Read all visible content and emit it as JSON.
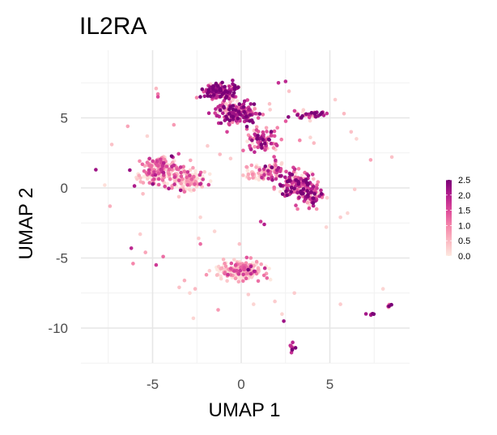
{
  "chart_data": {
    "type": "scatter",
    "title": "IL2RA",
    "xlabel": "UMAP 1",
    "ylabel": "UMAP 2",
    "xlim": [
      -9,
      9.3
    ],
    "ylim": [
      -12.6,
      8.4
    ],
    "x_ticks": [
      -5,
      0,
      5
    ],
    "y_ticks": [
      -10,
      -5,
      0,
      5
    ],
    "grid": true,
    "color_scale": {
      "min": 0,
      "max": 2.5,
      "ticks": [
        0.0,
        0.5,
        1.0,
        1.5,
        2.0,
        2.5
      ],
      "tick_labels": [
        "0.0",
        "0.5",
        "1.0",
        "1.5",
        "2.0",
        "2.5"
      ],
      "colors": [
        "#fde8df",
        "#fbb9c2",
        "#f586ab",
        "#dd4a9a",
        "#b41f8e",
        "#7a0177"
      ]
    },
    "legend_position": "right",
    "clusters": [
      {
        "center": [
          -1.2,
          6.9
        ],
        "spread": [
          1.0,
          0.55
        ],
        "n": 140,
        "mean_value": 1.9
      },
      {
        "center": [
          -0.2,
          5.4
        ],
        "spread": [
          1.1,
          0.8
        ],
        "n": 170,
        "mean_value": 1.8
      },
      {
        "center": [
          1.2,
          3.4
        ],
        "spread": [
          0.8,
          0.8
        ],
        "n": 90,
        "mean_value": 1.7
      },
      {
        "center": [
          3.7,
          5.3
        ],
        "spread": [
          1.0,
          0.3
        ],
        "n": 40,
        "mean_value": 2.0
      },
      {
        "center": [
          3.0,
          0.3
        ],
        "spread": [
          0.9,
          0.8
        ],
        "n": 130,
        "mean_value": 1.6
      },
      {
        "center": [
          3.9,
          -0.5
        ],
        "spread": [
          0.6,
          0.8
        ],
        "n": 90,
        "mean_value": 1.7
      },
      {
        "center": [
          2.0,
          1.2
        ],
        "spread": [
          0.9,
          0.6
        ],
        "n": 60,
        "mean_value": 1.1
      },
      {
        "center": [
          -4.6,
          1.2
        ],
        "spread": [
          1.0,
          1.0
        ],
        "n": 200,
        "mean_value": 0.8
      },
      {
        "center": [
          -3.0,
          0.5
        ],
        "spread": [
          0.9,
          0.9
        ],
        "n": 110,
        "mean_value": 0.5
      },
      {
        "center": [
          0.0,
          -5.9
        ],
        "spread": [
          1.1,
          0.6
        ],
        "n": 220,
        "mean_value": 0.55
      },
      {
        "center": [
          0.8,
          1.0
        ],
        "spread": [
          0.7,
          0.6
        ],
        "n": 40,
        "mean_value": 0.3
      },
      {
        "center": [
          2.9,
          -11.4
        ],
        "spread": [
          0.2,
          0.3
        ],
        "n": 14,
        "mean_value": 2.3
      },
      {
        "center": [
          8.4,
          -8.4
        ],
        "spread": [
          0.15,
          0.12
        ],
        "n": 8,
        "mean_value": 2.1
      },
      {
        "center": [
          7.4,
          -9.0
        ],
        "spread": [
          0.3,
          0.1
        ],
        "n": 6,
        "mean_value": 2.0
      }
    ],
    "scattered_points": [
      [
        -8.2,
        1.3,
        2.2
      ],
      [
        -7.7,
        0.2,
        0.1
      ],
      [
        -7.4,
        -1.3,
        0.6
      ],
      [
        -7.3,
        3.1,
        0.4
      ],
      [
        -6.4,
        4.4,
        0.7
      ],
      [
        -6.2,
        -4.3,
        1.9
      ],
      [
        -6.1,
        -5.4,
        1.0
      ],
      [
        -5.7,
        -3.3,
        0.3
      ],
      [
        -5.4,
        -4.6,
        0.7
      ],
      [
        -5.3,
        3.7,
        0.2
      ],
      [
        -4.7,
        6.7,
        1.1
      ],
      [
        -4.4,
        -4.9,
        1.2
      ],
      [
        -4.8,
        -5.5,
        1.7
      ],
      [
        -4.7,
        6.5,
        1.5
      ],
      [
        -4.8,
        7.1,
        0.5
      ],
      [
        -3.8,
        4.5,
        0.8
      ],
      [
        -3.2,
        -6.6,
        0.6
      ],
      [
        -3.5,
        -7.1,
        0.4
      ],
      [
        -2.9,
        -7.5,
        0.2
      ],
      [
        -2.7,
        -9.3,
        0.2
      ],
      [
        -2.4,
        -3.6,
        0.3
      ],
      [
        -2.3,
        -2.1,
        0.2
      ],
      [
        -2.3,
        -4.0,
        1.2
      ],
      [
        -2.6,
        -7.2,
        0.5
      ],
      [
        -1.9,
        3.0,
        0.3
      ],
      [
        -1.3,
        -8.7,
        0.8
      ],
      [
        -1.0,
        -5.1,
        0.5
      ],
      [
        -0.6,
        2.1,
        0.3
      ],
      [
        -0.1,
        -4.0,
        0.4
      ],
      [
        0.4,
        -7.6,
        0.3
      ],
      [
        0.7,
        -8.3,
        0.2
      ],
      [
        1.1,
        -2.4,
        1.7
      ],
      [
        1.3,
        -2.6,
        2.0
      ],
      [
        1.9,
        -8.1,
        0.3
      ],
      [
        2.3,
        -9.0,
        0.2
      ],
      [
        2.4,
        -9.5,
        2.2
      ],
      [
        2.1,
        7.5,
        1.8
      ],
      [
        2.5,
        7.6,
        1.9
      ],
      [
        2.7,
        6.9,
        0.4
      ],
      [
        3.0,
        -7.5,
        0.3
      ],
      [
        3.3,
        3.4,
        1.0
      ],
      [
        3.9,
        3.6,
        0.2
      ],
      [
        4.1,
        3.2,
        0.5
      ],
      [
        4.8,
        -2.8,
        0.2
      ],
      [
        5.3,
        6.3,
        0.3
      ],
      [
        5.8,
        5.3,
        0.5
      ],
      [
        5.6,
        -2.1,
        0.3
      ],
      [
        6.0,
        -1.8,
        0.2
      ],
      [
        6.4,
        -0.1,
        0.3
      ],
      [
        6.5,
        3.5,
        0.2
      ],
      [
        6.2,
        4.0,
        0.4
      ],
      [
        7.3,
        2.0,
        0.7
      ],
      [
        8.5,
        2.2,
        0.4
      ],
      [
        8.0,
        -7.2,
        0.2
      ],
      [
        5.6,
        -8.3,
        0.3
      ],
      [
        -1.5,
        -3.1,
        0.2
      ],
      [
        0.3,
        1.5,
        0.8
      ],
      [
        -1.2,
        2.4,
        0.5
      ],
      [
        -0.8,
        4.0,
        1.6
      ],
      [
        1.6,
        6.0,
        0.4
      ]
    ]
  }
}
